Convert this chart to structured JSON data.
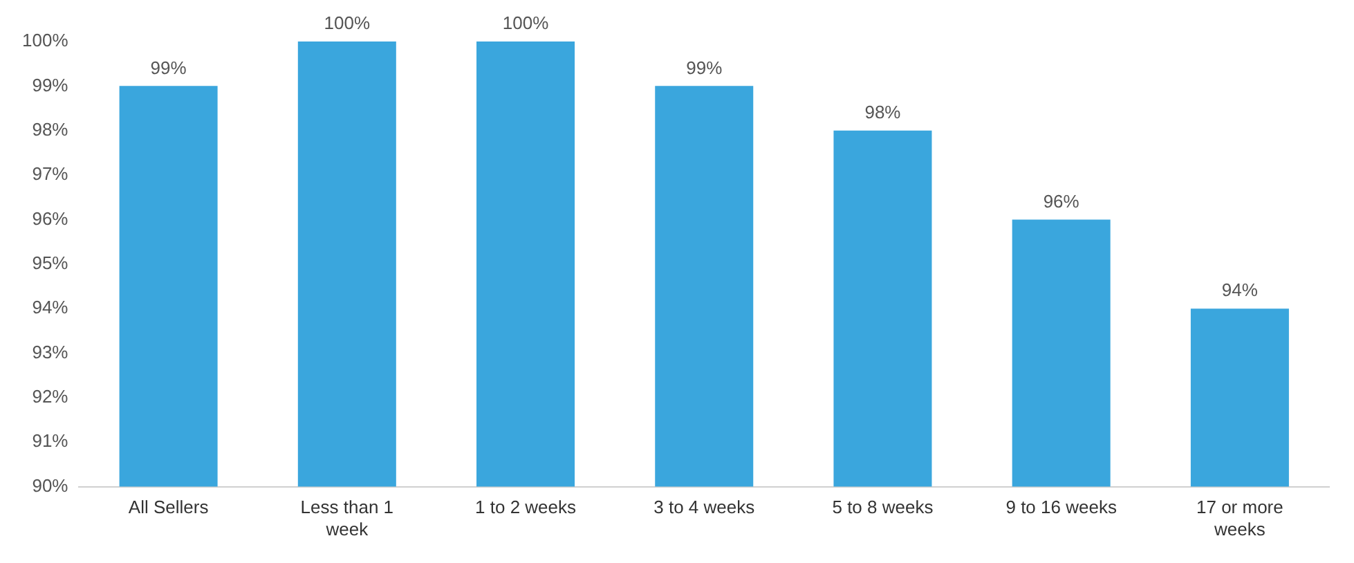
{
  "chart_data": {
    "type": "bar",
    "categories": [
      "All Sellers",
      "Less than 1 week",
      "1 to 2 weeks",
      "3 to 4 weeks",
      "5 to 8 weeks",
      "9 to 16 weeks",
      "17 or more weeks"
    ],
    "values": [
      99,
      100,
      100,
      99,
      98,
      96,
      94
    ],
    "value_labels": [
      "99%",
      "100%",
      "100%",
      "99%",
      "98%",
      "96%",
      "94%"
    ],
    "color": "#3aa6dd",
    "ylim": [
      90,
      100
    ],
    "yticks": [
      {
        "value": 90,
        "label": "90%"
      },
      {
        "value": 91,
        "label": "91%"
      },
      {
        "value": 92,
        "label": "92%"
      },
      {
        "value": 93,
        "label": "93%"
      },
      {
        "value": 94,
        "label": "94%"
      },
      {
        "value": 95,
        "label": "95%"
      },
      {
        "value": 96,
        "label": "96%"
      },
      {
        "value": 97,
        "label": "97%"
      },
      {
        "value": 98,
        "label": "98%"
      },
      {
        "value": 99,
        "label": "99%"
      },
      {
        "value": 100,
        "label": "100%"
      }
    ],
    "grid": false,
    "legend": false
  }
}
